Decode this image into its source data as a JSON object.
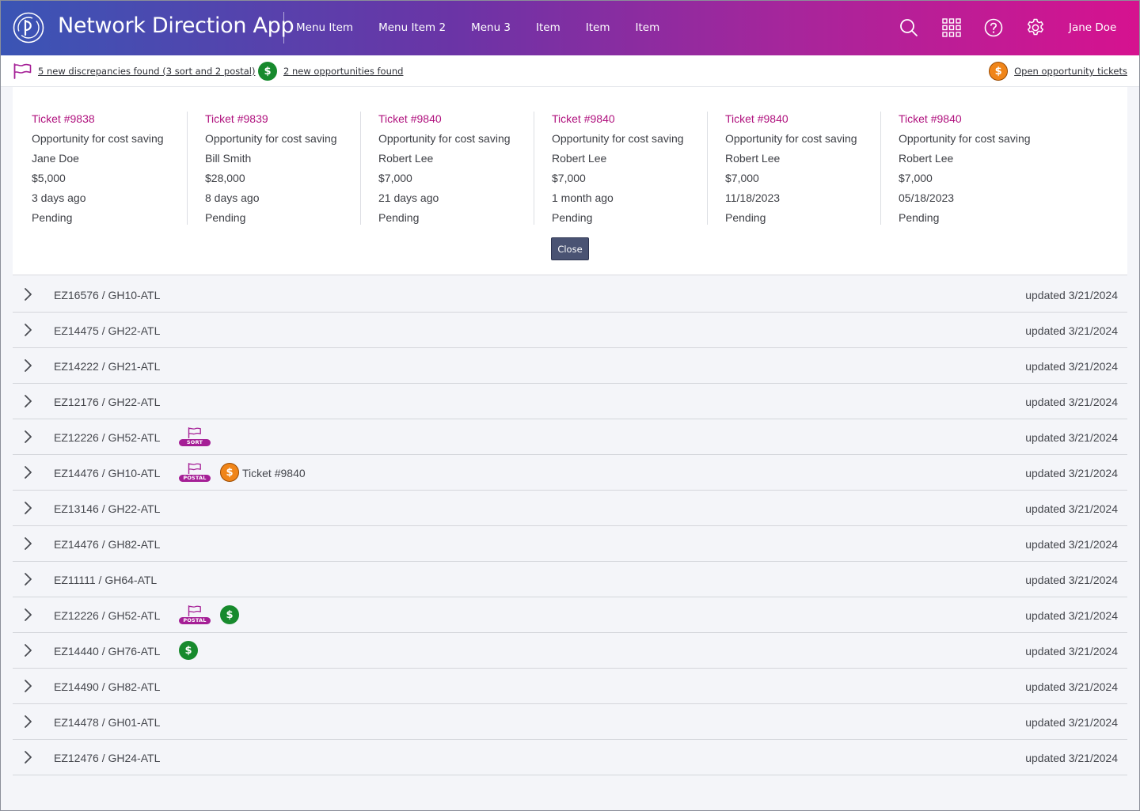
{
  "header": {
    "app_title": "Network Direction App",
    "nav": [
      "Menu Item",
      "Menu Item 2",
      "Menu 3",
      "Item",
      "Item",
      "Item"
    ],
    "user_name": "Jane Doe",
    "icons": [
      "search-icon",
      "apps-grid-icon",
      "help-icon",
      "settings-gear-icon"
    ]
  },
  "notices": {
    "discrepancies": "5 new discrepancies found (3 sort and 2 postal)",
    "opportunities": "2 new opportunities found",
    "open_tickets": "Open opportunity tickets"
  },
  "tickets": [
    {
      "title": "Ticket #9838",
      "desc": "Opportunity for cost saving",
      "owner": "Jane Doe",
      "amount": "$5,000",
      "age": "3 days ago",
      "status": "Pending"
    },
    {
      "title": "Ticket #9839",
      "desc": "Opportunity for cost saving",
      "owner": "Bill Smith",
      "amount": "$28,000",
      "age": "8 days ago",
      "status": "Pending"
    },
    {
      "title": "Ticket #9840",
      "desc": "Opportunity for cost saving",
      "owner": "Robert Lee",
      "amount": "$7,000",
      "age": "21 days ago",
      "status": "Pending"
    },
    {
      "title": "Ticket #9840",
      "desc": "Opportunity for cost saving",
      "owner": "Robert Lee",
      "amount": "$7,000",
      "age": "1 month ago",
      "status": "Pending"
    },
    {
      "title": "Ticket #9840",
      "desc": "Opportunity for cost saving",
      "owner": "Robert Lee",
      "amount": "$7,000",
      "age": "11/18/2023",
      "status": "Pending"
    },
    {
      "title": "Ticket #9840",
      "desc": "Opportunity for cost saving",
      "owner": "Robert Lee",
      "amount": "$7,000",
      "age": "05/18/2023",
      "status": "Pending"
    }
  ],
  "close_label": "Close",
  "badge_labels": {
    "sort": "SORT",
    "postal": "POSTAL"
  },
  "coin_symbol": "$",
  "colors": {
    "accent": "#b0127e",
    "badge": "#a51f96",
    "opportunity_green": "#178a2d",
    "ticket_orange": "#f08519",
    "button": "#4a5373"
  },
  "rows": [
    {
      "id": "EZ16576 / GH10-ATL",
      "updated": "updated 3/21/2024"
    },
    {
      "id": "EZ14475 / GH22-ATL",
      "updated": "updated 3/21/2024"
    },
    {
      "id": "EZ14222 / GH21-ATL",
      "updated": "updated 3/21/2024"
    },
    {
      "id": "EZ12176 / GH22-ATL",
      "updated": "updated 3/21/2024"
    },
    {
      "id": "EZ12226 / GH52-ATL",
      "updated": "updated 3/21/2024",
      "flag": "sort"
    },
    {
      "id": "EZ14476 / GH10-ATL",
      "updated": "updated 3/21/2024",
      "flag": "postal",
      "coin": "orange",
      "ticket": "Ticket #9840"
    },
    {
      "id": "EZ13146 / GH22-ATL",
      "updated": "updated 3/21/2024"
    },
    {
      "id": "EZ14476 / GH82-ATL",
      "updated": "updated 3/21/2024"
    },
    {
      "id": "EZ11111 / GH64-ATL",
      "updated": "updated 3/21/2024"
    },
    {
      "id": "EZ12226 / GH52-ATL",
      "updated": "updated 3/21/2024",
      "flag": "postal",
      "coin": "green"
    },
    {
      "id": "EZ14440 / GH76-ATL",
      "updated": "updated 3/21/2024",
      "coin": "green"
    },
    {
      "id": "EZ14490 / GH82-ATL",
      "updated": "updated 3/21/2024"
    },
    {
      "id": "EZ14478 / GH01-ATL",
      "updated": "updated 3/21/2024"
    },
    {
      "id": "EZ12476 / GH24-ATL",
      "updated": "updated 3/21/2024"
    }
  ]
}
